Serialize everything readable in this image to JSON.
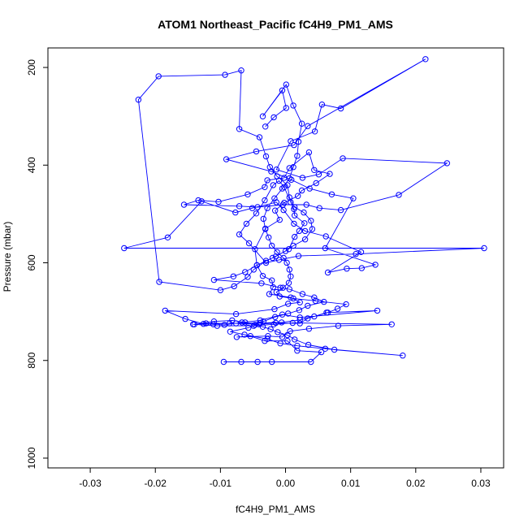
{
  "chart_data": {
    "type": "line",
    "title": "ATOM1 Northeast_Pacific fC4H9_PM1_AMS",
    "xlabel": "fC4H9_PM1_AMS",
    "ylabel": "Pressure (mbar)",
    "xlim": [
      -0.0365,
      0.0335
    ],
    "ylim": [
      1020,
      160
    ],
    "y_reversed": true,
    "x_ticks": [
      -0.03,
      -0.02,
      -0.01,
      0.0,
      0.01,
      0.02,
      0.03
    ],
    "x_tick_labels": [
      "-0.03",
      "-0.02",
      "-0.01",
      "0.00",
      "0.01",
      "0.02",
      "0.03"
    ],
    "y_ticks": [
      200,
      400,
      600,
      800,
      1000
    ],
    "y_tick_labels": [
      "200",
      "400",
      "600",
      "800",
      "1000"
    ],
    "grid": false,
    "series_color": "#0000ff",
    "marker": "open-circle",
    "points": [
      [
        -0.0095,
        803
      ],
      [
        -0.0068,
        803
      ],
      [
        -0.0043,
        803
      ],
      [
        -0.0021,
        803
      ],
      [
        0.0039,
        803
      ],
      [
        0.0055,
        783
      ],
      [
        0.0018,
        780
      ],
      [
        0.0003,
        760
      ],
      [
        -0.0032,
        760
      ],
      [
        -0.0054,
        750
      ],
      [
        -0.0075,
        752
      ],
      [
        -0.0027,
        750
      ],
      [
        -0.0005,
        752
      ],
      [
        0.0007,
        740
      ],
      [
        0.0036,
        735
      ],
      [
        0.0081,
        729
      ],
      [
        0.0163,
        726
      ],
      [
        0.0011,
        723
      ],
      [
        -0.0018,
        726
      ],
      [
        -0.0049,
        729
      ],
      [
        -0.0105,
        729
      ],
      [
        -0.0142,
        726
      ],
      [
        -0.0122,
        724
      ],
      [
        -0.0076,
        724
      ],
      [
        -0.0041,
        726
      ],
      [
        -0.0015,
        723
      ],
      [
        0.0022,
        724
      ],
      [
        0.0034,
        714
      ],
      [
        0.0063,
        702
      ],
      [
        0.0141,
        698
      ],
      [
        0.0022,
        712
      ],
      [
        -0.0005,
        706
      ],
      [
        -0.0039,
        718
      ],
      [
        -0.0067,
        722
      ],
      [
        -0.0094,
        727
      ],
      [
        -0.0111,
        726
      ],
      [
        -0.0126,
        725
      ],
      [
        -0.0154,
        715
      ],
      [
        -0.0185,
        698
      ],
      [
        -0.0076,
        705
      ],
      [
        -0.0017,
        695
      ],
      [
        0.0004,
        684
      ],
      [
        0.0022,
        681
      ],
      [
        0.0008,
        671
      ],
      [
        -0.0025,
        664
      ],
      [
        -0.0019,
        650
      ],
      [
        -0.0021,
        636
      ],
      [
        -0.0035,
        627
      ],
      [
        -0.0044,
        605
      ],
      [
        -0.0047,
        572
      ],
      [
        -0.0031,
        530
      ],
      [
        -0.0009,
        512
      ],
      [
        -0.0016,
        493
      ],
      [
        -0.0002,
        477
      ],
      [
        0.0019,
        463
      ],
      [
        0.0025,
        452
      ],
      [
        0.0047,
        437
      ],
      [
        0.0068,
        418
      ],
      [
        0.0044,
        410
      ],
      [
        0.0036,
        374
      ],
      [
        0.0006,
        406
      ],
      [
        -0.0002,
        426
      ],
      [
        -0.0028,
        431
      ],
      [
        -0.0032,
        445
      ],
      [
        -0.0058,
        460
      ],
      [
        -0.0103,
        475
      ],
      [
        -0.0134,
        472
      ],
      [
        -0.0156,
        481
      ],
      [
        -0.0071,
        484
      ],
      [
        -0.0043,
        486
      ],
      [
        -0.0004,
        481
      ],
      [
        0.0032,
        481
      ],
      [
        0.0052,
        488
      ],
      [
        0.0085,
        492
      ],
      [
        0.0174,
        461
      ],
      [
        0.0248,
        396
      ],
      [
        0.0088,
        386
      ],
      [
        0.0051,
        419
      ],
      [
        0.0026,
        426
      ],
      [
        -0.0014,
        409
      ],
      [
        0.0008,
        351
      ],
      [
        0.0045,
        331
      ],
      [
        0.0056,
        276
      ],
      [
        0.0085,
        284
      ],
      [
        0.0215,
        183
      ],
      [
        0.0034,
        320
      ],
      [
        0.0013,
        359
      ],
      [
        -0.0045,
        372
      ],
      [
        -0.0091,
        388
      ],
      [
        -0.0022,
        413
      ],
      [
        0.0009,
        430
      ],
      [
        0.0037,
        448
      ],
      [
        0.0071,
        460
      ],
      [
        0.0104,
        468
      ],
      [
        0.0061,
        570
      ],
      [
        0.0138,
        604
      ],
      [
        0.0117,
        611
      ],
      [
        0.0094,
        612
      ],
      [
        0.0065,
        620
      ],
      [
        0.0116,
        578
      ],
      [
        0.0062,
        546
      ],
      [
        0.003,
        535
      ],
      [
        0.0013,
        520
      ],
      [
        -0.0003,
        492
      ],
      [
        -0.0014,
        476
      ],
      [
        -0.0051,
        488
      ],
      [
        -0.0077,
        497
      ],
      [
        -0.0129,
        474
      ],
      [
        -0.0181,
        548
      ],
      [
        -0.0248,
        570
      ],
      [
        0.0305,
        570
      ],
      [
        0.0108,
        582
      ],
      [
        0.002,
        586
      ],
      [
        -0.001,
        594
      ],
      [
        -0.003,
        600
      ],
      [
        -0.0056,
        560
      ],
      [
        -0.0071,
        542
      ],
      [
        -0.006,
        520
      ],
      [
        -0.0045,
        499
      ],
      [
        -0.0032,
        472
      ],
      [
        -0.0019,
        441
      ],
      [
        -0.001,
        432
      ],
      [
        -0.0002,
        445
      ],
      [
        0.0008,
        476
      ],
      [
        0.0013,
        490
      ],
      [
        0.0014,
        503
      ],
      [
        0.0029,
        519
      ],
      [
        0.0021,
        535
      ],
      [
        0.0014,
        547
      ],
      [
        0.0005,
        572
      ],
      [
        -0.0015,
        587
      ],
      [
        -0.003,
        596
      ],
      [
        -0.0049,
        614
      ],
      [
        -0.0058,
        629
      ],
      [
        -0.0079,
        648
      ],
      [
        -0.01,
        656
      ],
      [
        -0.0194,
        639
      ],
      [
        -0.0226,
        266
      ],
      [
        -0.0195,
        218
      ],
      [
        -0.0093,
        215
      ],
      [
        -0.0068,
        206
      ],
      [
        -0.0071,
        326
      ],
      [
        -0.004,
        343
      ],
      [
        -0.003,
        382
      ],
      [
        -0.0024,
        404
      ],
      [
        -0.0013,
        423
      ],
      [
        0.0003,
        441
      ],
      [
        0.0006,
        466
      ],
      [
        0.0014,
        486
      ],
      [
        0.0028,
        497
      ],
      [
        0.0039,
        514
      ],
      [
        0.0041,
        531
      ],
      [
        0.003,
        552
      ],
      [
        0.0012,
        565
      ],
      [
        0.0,
        576
      ],
      [
        -0.002,
        590
      ],
      [
        -0.0044,
        605
      ],
      [
        -0.0062,
        619
      ],
      [
        -0.008,
        628
      ],
      [
        -0.011,
        635
      ],
      [
        -0.0037,
        642
      ],
      [
        -0.0008,
        651
      ],
      [
        0.0006,
        654
      ],
      [
        0.0026,
        664
      ],
      [
        0.0044,
        671
      ],
      [
        0.0059,
        680
      ],
      [
        0.0034,
        688
      ],
      [
        0.0021,
        697
      ],
      [
        0.0004,
        704
      ],
      [
        -0.0016,
        711
      ],
      [
        -0.0034,
        720
      ],
      [
        -0.0057,
        733
      ],
      [
        -0.0085,
        741
      ],
      [
        -0.0063,
        747
      ],
      [
        -0.0028,
        756
      ],
      [
        -0.0008,
        765
      ],
      [
        0.0018,
        770
      ],
      [
        0.0061,
        776
      ],
      [
        0.018,
        790
      ],
      [
        0.0075,
        778
      ],
      [
        0.0035,
        768
      ],
      [
        0.0014,
        757
      ],
      [
        0.0003,
        748
      ],
      [
        -0.0012,
        742
      ],
      [
        -0.0023,
        736
      ],
      [
        -0.0035,
        731
      ],
      [
        -0.0047,
        727
      ],
      [
        -0.0062,
        722
      ],
      [
        -0.0082,
        718
      ],
      [
        -0.011,
        720
      ],
      [
        -0.014,
        726
      ],
      [
        -0.0086,
        724
      ],
      [
        -0.0039,
        723
      ],
      [
        -0.0006,
        722
      ],
      [
        0.0022,
        717
      ],
      [
        0.0044,
        710
      ],
      [
        0.0065,
        702
      ],
      [
        0.008,
        694
      ],
      [
        0.0093,
        685
      ],
      [
        0.0046,
        678
      ],
      [
        0.0012,
        673
      ],
      [
        -0.0009,
        669
      ],
      [
        -0.0014,
        660
      ],
      [
        -0.0004,
        651
      ],
      [
        0.0005,
        641
      ],
      [
        0.0008,
        628
      ],
      [
        0.0006,
        614
      ],
      [
        0.0002,
        600
      ],
      [
        -0.0003,
        590
      ],
      [
        -0.0013,
        578
      ],
      [
        -0.0021,
        565
      ],
      [
        -0.0026,
        548
      ],
      [
        -0.0031,
        531
      ],
      [
        -0.0034,
        510
      ],
      [
        -0.0028,
        488
      ],
      [
        -0.0017,
        468
      ],
      [
        -0.0005,
        448
      ],
      [
        0.0006,
        427
      ],
      [
        0.0012,
        404
      ],
      [
        0.0018,
        381
      ],
      [
        0.002,
        352
      ],
      [
        0.0025,
        315
      ],
      [
        0.0012,
        278
      ],
      [
        0.0001,
        235
      ],
      [
        -0.0035,
        300
      ],
      [
        -0.0005,
        247
      ],
      [
        0.0001,
        283
      ],
      [
        -0.0018,
        302
      ],
      [
        -0.0031,
        321
      ]
    ]
  }
}
